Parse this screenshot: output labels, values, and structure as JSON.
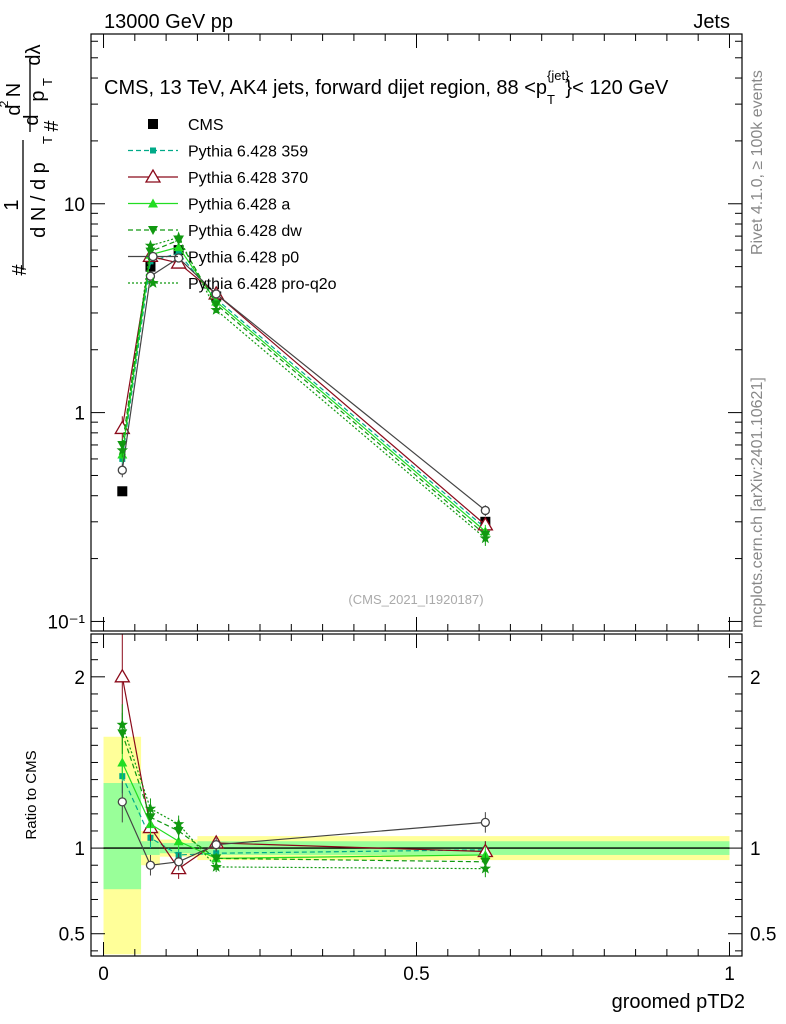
{
  "header": {
    "left": "13000 GeV pp",
    "right": "Jets"
  },
  "side_labels": {
    "rivet": "Rivet 4.1.0, ≥ 100k events",
    "mcplots": "mcplots.cern.ch [arXiv:2401.10621]"
  },
  "watermark": "(CMS_2021_I1920187)",
  "chart_data": [
    {
      "type": "line",
      "panel": "main",
      "title": "CMS, 13 TeV, AK4 jets, forward dijet region, 88 <p",
      "title_sup": "{jet}",
      "title_sub": "T",
      "title_end": "}< 120 GeV",
      "ylabel_parts": [
        "#",
        "1",
        "d N / d p",
        "T",
        "#",
        "d",
        "p",
        "T",
        "d",
        "2",
        "N",
        "dλ"
      ],
      "yscale": "log",
      "ylim": [
        0.09,
        65
      ],
      "xlim": [
        -0.02,
        1.02
      ],
      "ytick_labels": [
        {
          "value": 0.1,
          "label": "10⁻¹"
        },
        {
          "value": 1,
          "label": "1"
        },
        {
          "value": 10,
          "label": "10"
        }
      ],
      "x": [
        0.03,
        0.075,
        0.12,
        0.18,
        0.61
      ],
      "series": [
        {
          "name": "CMS",
          "style": "data",
          "color": "#000000",
          "marker": "square",
          "dash": "",
          "values": [
            0.42,
            5.0,
            6.0,
            3.6,
            0.3
          ],
          "errors": [
            0.02,
            0.2,
            0.2,
            0.1,
            0.01
          ]
        },
        {
          "name": "Pythia 6.428 359",
          "color": "#00aa88",
          "marker": "smallsquare",
          "dash": "5,3",
          "values": [
            0.6,
            5.3,
            5.8,
            3.5,
            0.28
          ],
          "errors": [
            0.03,
            0.2,
            0.2,
            0.1,
            0.02
          ]
        },
        {
          "name": "Pythia 6.428 370",
          "color": "#8b0a1a",
          "marker": "opentriangle",
          "dash": "",
          "values": [
            0.84,
            5.6,
            5.2,
            3.7,
            0.29
          ],
          "errors": [
            0.12,
            0.3,
            0.3,
            0.15,
            0.02
          ]
        },
        {
          "name": "Pythia 6.428 a",
          "color": "#22dd22",
          "marker": "triangle",
          "dash": "",
          "values": [
            0.63,
            5.7,
            6.2,
            3.4,
            0.27
          ],
          "errors": [
            0.05,
            0.2,
            0.2,
            0.1,
            0.02
          ]
        },
        {
          "name": "Pythia 6.428 dw",
          "color": "#119911",
          "marker": "invtriangle",
          "dash": "5,3",
          "values": [
            0.7,
            5.9,
            6.7,
            3.3,
            0.26
          ],
          "errors": [
            0.05,
            0.2,
            0.2,
            0.1,
            0.02
          ]
        },
        {
          "name": "Pythia 6.428 p0",
          "color": "#444444",
          "marker": "opencircle",
          "dash": "",
          "values": [
            0.53,
            4.5,
            5.5,
            3.7,
            0.34
          ],
          "errors": [
            0.04,
            0.2,
            0.2,
            0.1,
            0.02
          ]
        },
        {
          "name": "Pythia 6.428 pro-q2o",
          "color": "#119911",
          "marker": "star",
          "dash": "2,2",
          "values": [
            0.66,
            6.3,
            6.9,
            3.1,
            0.25
          ],
          "errors": [
            0.05,
            0.2,
            0.2,
            0.1,
            0.02
          ]
        }
      ]
    },
    {
      "type": "line",
      "panel": "ratio",
      "ylabel": "Ratio to CMS",
      "xlabel": "groomed pTD2",
      "ylim": [
        0.37,
        2.25
      ],
      "xlim": [
        -0.02,
        1.02
      ],
      "xtick_labels": [
        {
          "value": 0,
          "label": "0"
        },
        {
          "value": 0.5,
          "label": "0.5"
        },
        {
          "value": 1,
          "label": "1"
        }
      ],
      "ytick_labels": [
        {
          "value": 0.5,
          "label": "0.5"
        },
        {
          "value": 1,
          "label": "1"
        },
        {
          "value": 2,
          "label": "2"
        }
      ],
      "bands": [
        {
          "xmin": 0.0,
          "xmax": 0.06,
          "yellow": [
            0.38,
            1.65
          ],
          "green": [
            0.76,
            1.38
          ]
        },
        {
          "xmin": 0.06,
          "xmax": 0.09,
          "yellow": [
            0.9,
            1.1
          ],
          "green": [
            0.96,
            1.04
          ]
        },
        {
          "xmin": 0.09,
          "xmax": 0.15,
          "yellow": [
            0.95,
            1.05
          ],
          "green": [
            0.97,
            1.03
          ]
        },
        {
          "xmin": 0.15,
          "xmax": 1.0,
          "yellow": [
            0.93,
            1.07
          ],
          "green": [
            0.96,
            1.04
          ]
        }
      ],
      "x": [
        0.03,
        0.075,
        0.12,
        0.18,
        0.61
      ],
      "series": [
        {
          "name": "Pythia 6.428 359",
          "color": "#00aa88",
          "marker": "smallsquare",
          "dash": "5,3",
          "values": [
            1.42,
            1.06,
            0.96,
            0.97,
            0.99
          ],
          "errors": [
            0.1,
            0.06,
            0.05,
            0.03,
            0.05
          ]
        },
        {
          "name": "Pythia 6.428 370",
          "color": "#8b0a1a",
          "marker": "opentriangle",
          "dash": "",
          "values": [
            2.0,
            1.12,
            0.88,
            1.03,
            0.98
          ],
          "errors": [
            0.25,
            0.08,
            0.06,
            0.04,
            0.06
          ]
        },
        {
          "name": "Pythia 6.428 a",
          "color": "#22dd22",
          "marker": "triangle",
          "dash": "",
          "values": [
            1.5,
            1.14,
            1.04,
            0.94,
            0.96
          ],
          "errors": [
            0.1,
            0.06,
            0.05,
            0.03,
            0.05
          ]
        },
        {
          "name": "Pythia 6.428 dw",
          "color": "#119911",
          "marker": "invtriangle",
          "dash": "5,3",
          "values": [
            1.67,
            1.18,
            1.1,
            0.94,
            0.92
          ],
          "errors": [
            0.12,
            0.06,
            0.05,
            0.03,
            0.05
          ]
        },
        {
          "name": "Pythia 6.428 p0",
          "color": "#444444",
          "marker": "opencircle",
          "dash": "",
          "values": [
            1.27,
            0.9,
            0.92,
            1.02,
            1.15
          ],
          "errors": [
            0.12,
            0.06,
            0.05,
            0.04,
            0.06
          ]
        },
        {
          "name": "Pythia 6.428 pro-q2o",
          "color": "#119911",
          "marker": "star",
          "dash": "2,2",
          "values": [
            1.72,
            1.23,
            1.14,
            0.89,
            0.88
          ],
          "errors": [
            0.12,
            0.06,
            0.05,
            0.03,
            0.05
          ]
        }
      ]
    }
  ]
}
